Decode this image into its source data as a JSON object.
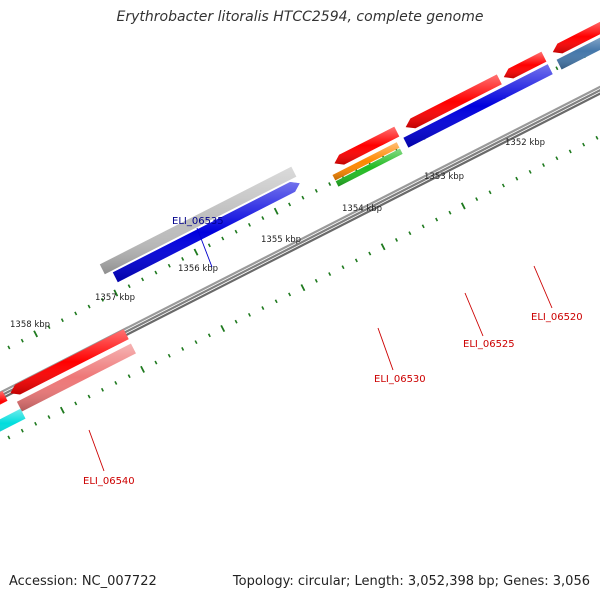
{
  "title": "Erythrobacter litoralis HTCC2594, complete genome",
  "footer": {
    "accession": "Accession: NC_007722",
    "stats": "Topology: circular; Length: 3,052,398 bp; Genes: 3,056"
  },
  "colors": {
    "backbone": "#808080",
    "tick": "#1f7a1f",
    "label_forward": "#00008b",
    "label_reverse": "#cc0000",
    "leader_forward": "#0000cc",
    "leader_reverse": "#cc0000"
  },
  "ticks": [
    {
      "label": "1358 kbp"
    },
    {
      "label": "1357 kbp"
    },
    {
      "label": "1356 kbp"
    },
    {
      "label": "1355 kbp"
    },
    {
      "label": "1354 kbp"
    },
    {
      "label": "1353 kbp"
    },
    {
      "label": "1352 kbp"
    }
  ],
  "genes": [
    {
      "strand": "forward",
      "color": "#bdbdbd",
      "label": "ELI_06535"
    },
    {
      "strand": "forward",
      "color": "#0000dd",
      "label": ""
    },
    {
      "strand": "forward",
      "color": "#ff0000",
      "label": ""
    },
    {
      "strand": "forward",
      "color": "#ff0000",
      "label": ""
    },
    {
      "strand": "forward",
      "color": "#ff0000",
      "label": ""
    },
    {
      "strand": "forward",
      "color": "#ff0000",
      "label": ""
    },
    {
      "strand": "forward",
      "color": "#ff8800",
      "label": ""
    },
    {
      "strand": "forward",
      "color": "#22bb22",
      "label": "ELI_06530"
    },
    {
      "strand": "forward",
      "color": "#0000dd",
      "label": "ELI_06525"
    },
    {
      "strand": "forward",
      "color": "#4477aa",
      "label": ""
    },
    {
      "strand": "reverse",
      "color": "#ff0000",
      "label": "ELI_06520"
    },
    {
      "strand": "reverse",
      "color": "#ff0000",
      "label": ""
    },
    {
      "strand": "reverse",
      "color": "#ee7777",
      "label": "ELI_06540"
    },
    {
      "strand": "reverse",
      "color": "#00dddd",
      "label": ""
    }
  ]
}
